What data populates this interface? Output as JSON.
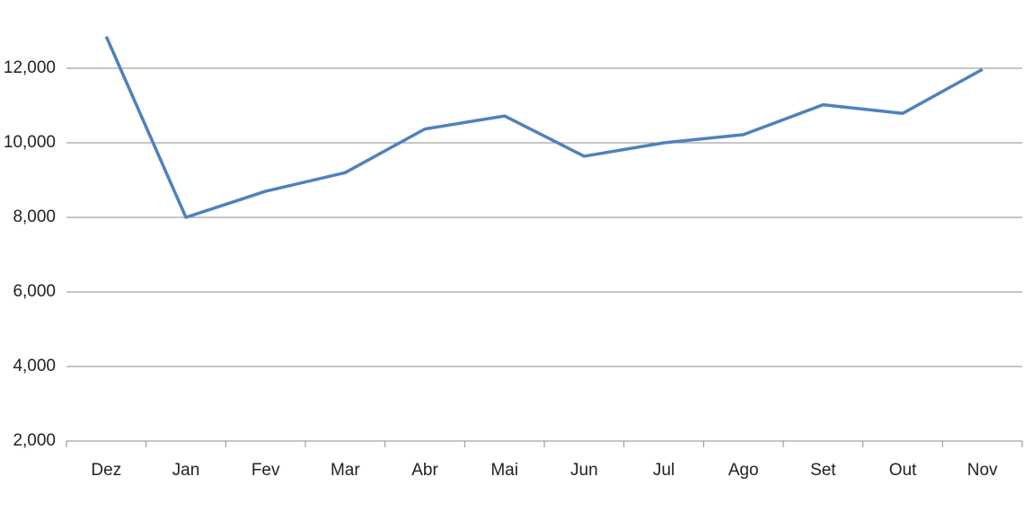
{
  "chart_data": {
    "type": "line",
    "categories": [
      "Dez",
      "Jan",
      "Fev",
      "Mar",
      "Abr",
      "Mai",
      "Jun",
      "Jul",
      "Ago",
      "Set",
      "Out",
      "Nov"
    ],
    "series": [
      {
        "color": "#4f81bd",
        "values": [
          12850,
          8000,
          8700,
          9200,
          10370,
          10720,
          9640,
          10000,
          10220,
          11020,
          10790,
          11970
        ]
      }
    ],
    "ylim": [
      2000,
      13000
    ],
    "yticks": [
      {
        "value": 2000,
        "label": "2,000"
      },
      {
        "value": 4000,
        "label": "4,000"
      },
      {
        "value": 6000,
        "label": "6,000"
      },
      {
        "value": 8000,
        "label": "8,000"
      },
      {
        "value": 10000,
        "label": "10,000"
      },
      {
        "value": 12000,
        "label": "12,000"
      }
    ],
    "grid": true
  }
}
